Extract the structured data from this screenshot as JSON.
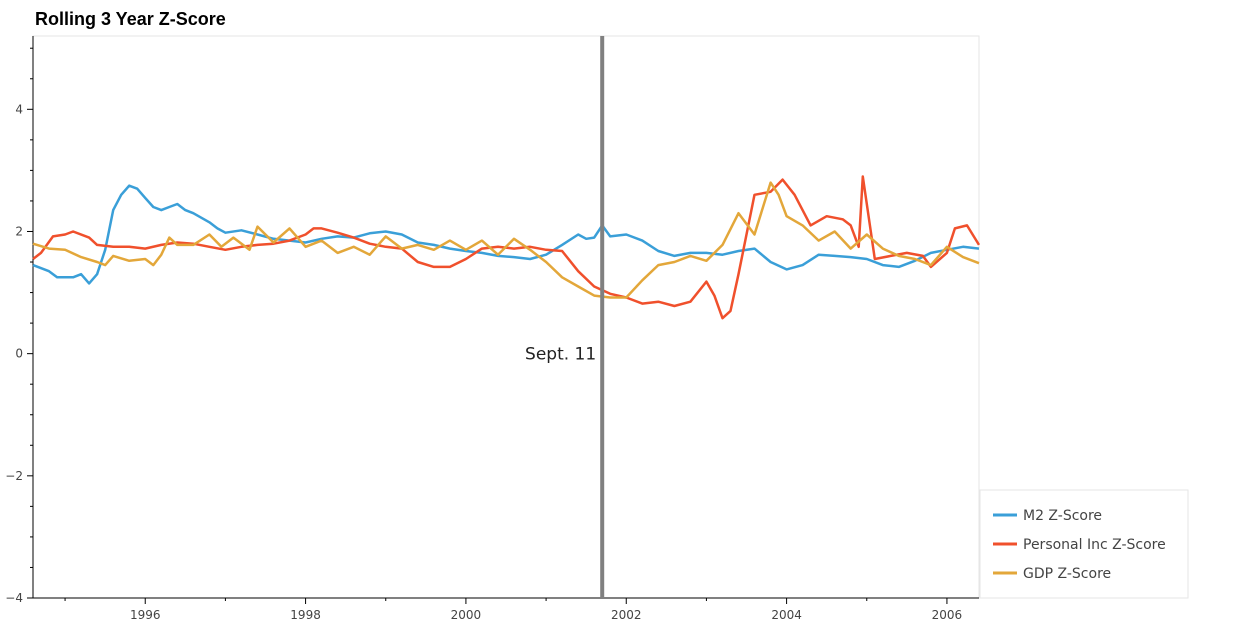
{
  "chart_data": {
    "type": "line",
    "title": "Rolling 3 Year Z-Score",
    "xlabel": "",
    "ylabel": "",
    "xlim": [
      1994.6,
      2006.4
    ],
    "ylim": [
      -4,
      5.2
    ],
    "x_ticks": [
      1996,
      1998,
      2000,
      2002,
      2004,
      2006
    ],
    "x_tick_labels": [
      "1996",
      "1998",
      "2000",
      "2002",
      "2004",
      "2006"
    ],
    "y_ticks": [
      -4,
      -2,
      0,
      2,
      4
    ],
    "y_tick_labels": [
      "−4",
      "−2",
      "0",
      "2",
      "4"
    ],
    "grid": false,
    "legend_position": "bottom-right, outside plot",
    "vline": {
      "x": 2001.7,
      "label": "Sept. 11",
      "color": "#808080"
    },
    "series": [
      {
        "name": "M2 Z-Score",
        "color": "#3a9fd8",
        "points": [
          [
            1994.6,
            1.45
          ],
          [
            1994.8,
            1.35
          ],
          [
            1994.9,
            1.25
          ],
          [
            1995.1,
            1.25
          ],
          [
            1995.2,
            1.3
          ],
          [
            1995.3,
            1.15
          ],
          [
            1995.4,
            1.3
          ],
          [
            1995.5,
            1.7
          ],
          [
            1995.6,
            2.35
          ],
          [
            1995.7,
            2.6
          ],
          [
            1995.8,
            2.75
          ],
          [
            1995.9,
            2.7
          ],
          [
            1996.0,
            2.55
          ],
          [
            1996.1,
            2.4
          ],
          [
            1996.2,
            2.35
          ],
          [
            1996.3,
            2.4
          ],
          [
            1996.4,
            2.45
          ],
          [
            1996.5,
            2.35
          ],
          [
            1996.6,
            2.3
          ],
          [
            1996.8,
            2.15
          ],
          [
            1996.9,
            2.05
          ],
          [
            1997.0,
            1.98
          ],
          [
            1997.2,
            2.02
          ],
          [
            1997.4,
            1.95
          ],
          [
            1997.6,
            1.88
          ],
          [
            1997.8,
            1.85
          ],
          [
            1998.0,
            1.82
          ],
          [
            1998.2,
            1.88
          ],
          [
            1998.4,
            1.92
          ],
          [
            1998.6,
            1.9
          ],
          [
            1998.8,
            1.97
          ],
          [
            1999.0,
            2.0
          ],
          [
            1999.2,
            1.95
          ],
          [
            1999.4,
            1.82
          ],
          [
            1999.6,
            1.78
          ],
          [
            1999.8,
            1.72
          ],
          [
            2000.0,
            1.68
          ],
          [
            2000.2,
            1.65
          ],
          [
            2000.4,
            1.6
          ],
          [
            2000.6,
            1.58
          ],
          [
            2000.8,
            1.55
          ],
          [
            2001.0,
            1.62
          ],
          [
            2001.2,
            1.78
          ],
          [
            2001.4,
            1.95
          ],
          [
            2001.5,
            1.88
          ],
          [
            2001.6,
            1.9
          ],
          [
            2001.7,
            2.1
          ],
          [
            2001.8,
            1.92
          ],
          [
            2002.0,
            1.95
          ],
          [
            2002.2,
            1.85
          ],
          [
            2002.4,
            1.68
          ],
          [
            2002.6,
            1.6
          ],
          [
            2002.8,
            1.65
          ],
          [
            2003.0,
            1.65
          ],
          [
            2003.2,
            1.62
          ],
          [
            2003.4,
            1.68
          ],
          [
            2003.6,
            1.72
          ],
          [
            2003.8,
            1.5
          ],
          [
            2004.0,
            1.38
          ],
          [
            2004.2,
            1.45
          ],
          [
            2004.4,
            1.62
          ],
          [
            2004.6,
            1.6
          ],
          [
            2004.8,
            1.58
          ],
          [
            2005.0,
            1.55
          ],
          [
            2005.2,
            1.45
          ],
          [
            2005.4,
            1.42
          ],
          [
            2005.6,
            1.52
          ],
          [
            2005.8,
            1.65
          ],
          [
            2006.0,
            1.7
          ],
          [
            2006.2,
            1.75
          ],
          [
            2006.4,
            1.72
          ]
        ]
      },
      {
        "name": "Personal Inc Z-Score",
        "color": "#f0502c",
        "points": [
          [
            1994.6,
            1.55
          ],
          [
            1994.7,
            1.65
          ],
          [
            1994.85,
            1.92
          ],
          [
            1995.0,
            1.95
          ],
          [
            1995.1,
            2.0
          ],
          [
            1995.3,
            1.9
          ],
          [
            1995.4,
            1.78
          ],
          [
            1995.6,
            1.75
          ],
          [
            1995.8,
            1.75
          ],
          [
            1996.0,
            1.72
          ],
          [
            1996.2,
            1.78
          ],
          [
            1996.4,
            1.82
          ],
          [
            1996.6,
            1.8
          ],
          [
            1996.8,
            1.75
          ],
          [
            1997.0,
            1.7
          ],
          [
            1997.2,
            1.75
          ],
          [
            1997.4,
            1.78
          ],
          [
            1997.6,
            1.8
          ],
          [
            1997.8,
            1.85
          ],
          [
            1998.0,
            1.95
          ],
          [
            1998.1,
            2.05
          ],
          [
            1998.2,
            2.05
          ],
          [
            1998.4,
            1.98
          ],
          [
            1998.6,
            1.9
          ],
          [
            1998.8,
            1.8
          ],
          [
            1999.0,
            1.75
          ],
          [
            1999.2,
            1.72
          ],
          [
            1999.4,
            1.5
          ],
          [
            1999.6,
            1.42
          ],
          [
            1999.8,
            1.42
          ],
          [
            2000.0,
            1.55
          ],
          [
            2000.2,
            1.72
          ],
          [
            2000.4,
            1.75
          ],
          [
            2000.6,
            1.72
          ],
          [
            2000.8,
            1.75
          ],
          [
            2001.0,
            1.7
          ],
          [
            2001.2,
            1.68
          ],
          [
            2001.4,
            1.35
          ],
          [
            2001.6,
            1.1
          ],
          [
            2001.8,
            0.98
          ],
          [
            2002.0,
            0.92
          ],
          [
            2002.2,
            0.82
          ],
          [
            2002.4,
            0.85
          ],
          [
            2002.6,
            0.78
          ],
          [
            2002.8,
            0.85
          ],
          [
            2003.0,
            1.18
          ],
          [
            2003.1,
            0.95
          ],
          [
            2003.2,
            0.58
          ],
          [
            2003.3,
            0.7
          ],
          [
            2003.4,
            1.3
          ],
          [
            2003.6,
            2.6
          ],
          [
            2003.8,
            2.65
          ],
          [
            2003.95,
            2.85
          ],
          [
            2004.1,
            2.6
          ],
          [
            2004.3,
            2.1
          ],
          [
            2004.5,
            2.25
          ],
          [
            2004.7,
            2.2
          ],
          [
            2004.8,
            2.1
          ],
          [
            2004.9,
            1.75
          ],
          [
            2004.95,
            2.9
          ],
          [
            2005.1,
            1.55
          ],
          [
            2005.3,
            1.6
          ],
          [
            2005.5,
            1.65
          ],
          [
            2005.7,
            1.6
          ],
          [
            2005.8,
            1.42
          ],
          [
            2006.0,
            1.65
          ],
          [
            2006.1,
            2.05
          ],
          [
            2006.25,
            2.1
          ],
          [
            2006.4,
            1.78
          ]
        ]
      },
      {
        "name": "GDP Z-Score",
        "color": "#e3a73a",
        "points": [
          [
            1994.6,
            1.8
          ],
          [
            1994.8,
            1.72
          ],
          [
            1995.0,
            1.7
          ],
          [
            1995.2,
            1.58
          ],
          [
            1995.4,
            1.5
          ],
          [
            1995.5,
            1.45
          ],
          [
            1995.6,
            1.6
          ],
          [
            1995.8,
            1.52
          ],
          [
            1996.0,
            1.55
          ],
          [
            1996.1,
            1.45
          ],
          [
            1996.2,
            1.62
          ],
          [
            1996.3,
            1.9
          ],
          [
            1996.4,
            1.78
          ],
          [
            1996.6,
            1.78
          ],
          [
            1996.8,
            1.95
          ],
          [
            1996.95,
            1.75
          ],
          [
            1997.1,
            1.9
          ],
          [
            1997.3,
            1.7
          ],
          [
            1997.4,
            2.08
          ],
          [
            1997.6,
            1.82
          ],
          [
            1997.8,
            2.05
          ],
          [
            1998.0,
            1.75
          ],
          [
            1998.2,
            1.85
          ],
          [
            1998.4,
            1.65
          ],
          [
            1998.6,
            1.75
          ],
          [
            1998.8,
            1.62
          ],
          [
            1999.0,
            1.92
          ],
          [
            1999.2,
            1.72
          ],
          [
            1999.4,
            1.78
          ],
          [
            1999.6,
            1.7
          ],
          [
            1999.8,
            1.85
          ],
          [
            2000.0,
            1.7
          ],
          [
            2000.2,
            1.85
          ],
          [
            2000.4,
            1.62
          ],
          [
            2000.6,
            1.88
          ],
          [
            2000.8,
            1.7
          ],
          [
            2001.0,
            1.5
          ],
          [
            2001.2,
            1.25
          ],
          [
            2001.4,
            1.1
          ],
          [
            2001.6,
            0.95
          ],
          [
            2001.8,
            0.92
          ],
          [
            2002.0,
            0.92
          ],
          [
            2002.2,
            1.2
          ],
          [
            2002.4,
            1.45
          ],
          [
            2002.6,
            1.5
          ],
          [
            2002.8,
            1.6
          ],
          [
            2003.0,
            1.52
          ],
          [
            2003.2,
            1.78
          ],
          [
            2003.4,
            2.3
          ],
          [
            2003.6,
            1.95
          ],
          [
            2003.8,
            2.8
          ],
          [
            2003.9,
            2.6
          ],
          [
            2004.0,
            2.25
          ],
          [
            2004.2,
            2.1
          ],
          [
            2004.4,
            1.85
          ],
          [
            2004.6,
            2.0
          ],
          [
            2004.8,
            1.72
          ],
          [
            2005.0,
            1.95
          ],
          [
            2005.2,
            1.72
          ],
          [
            2005.4,
            1.6
          ],
          [
            2005.6,
            1.55
          ],
          [
            2005.8,
            1.45
          ],
          [
            2006.0,
            1.75
          ],
          [
            2006.2,
            1.58
          ],
          [
            2006.4,
            1.48
          ]
        ]
      }
    ]
  }
}
